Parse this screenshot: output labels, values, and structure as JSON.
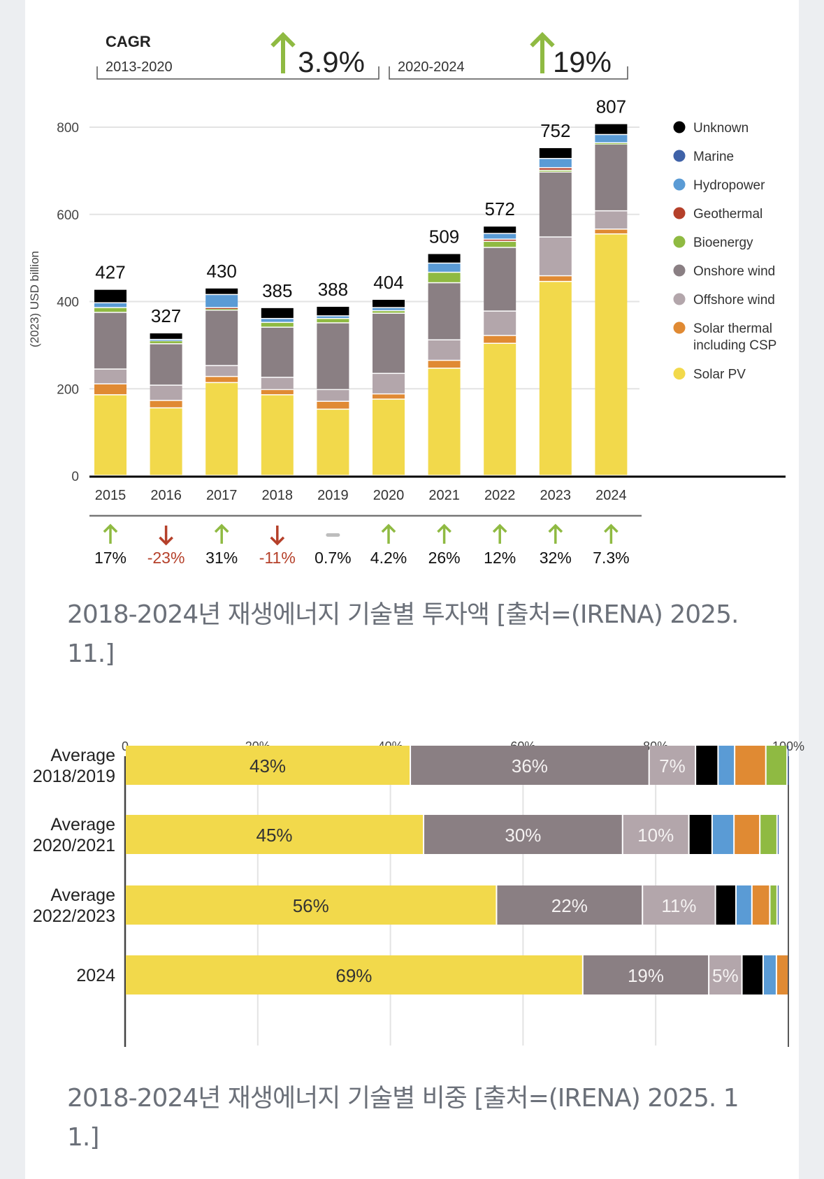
{
  "captions": {
    "chart1": "2018-2024년 재생에너지 기술별 투자액 [출처=(IRENA) 2025. 11.]",
    "chart2": "2018-2024년 재생에너지 기술별 비중 [출처=(IRENA) 2025. 1 1.]"
  },
  "colors": {
    "Unknown": "#000000",
    "Marine": "#3f62a8",
    "Hydropower": "#5a9bd5",
    "Geothermal": "#b5402a",
    "Bioenergy": "#8fba42",
    "Onshore wind": "#8a7f83",
    "Offshore wind": "#b3a6ab",
    "Solar thermal including CSP": "#e08a33",
    "Solar PV": "#f2d94b",
    "up": "#8fba42",
    "down": "#b5402a",
    "flat": "#bdbdbd"
  },
  "chart_data": [
    {
      "type": "bar",
      "stacked": true,
      "title": "CAGR",
      "ylabel": "(2023) USD billion",
      "ylim": [
        0,
        800
      ],
      "yticks": [
        0,
        200,
        400,
        600,
        800
      ],
      "grid": true,
      "legend_position": "right",
      "categories": [
        "2015",
        "2016",
        "2017",
        "2018",
        "2019",
        "2020",
        "2021",
        "2022",
        "2023",
        "2024"
      ],
      "totals": [
        427,
        327,
        430,
        385,
        388,
        404,
        509,
        572,
        752,
        807
      ],
      "total_labels": [
        "427",
        "327",
        "430",
        "385",
        "388",
        "404",
        "509",
        "572",
        "752",
        "807"
      ],
      "cagr": [
        {
          "period": "2013-2020",
          "value": "3.9%",
          "direction": "up"
        },
        {
          "period": "2020-2024",
          "value": "19%",
          "direction": "up"
        }
      ],
      "growth": [
        {
          "label": "17%",
          "direction": "up"
        },
        {
          "label": "-23%",
          "direction": "down"
        },
        {
          "label": "31%",
          "direction": "up"
        },
        {
          "label": "-11%",
          "direction": "down"
        },
        {
          "label": "0.7%",
          "direction": "flat"
        },
        {
          "label": "4.2%",
          "direction": "up"
        },
        {
          "label": "26%",
          "direction": "up"
        },
        {
          "label": "12%",
          "direction": "up"
        },
        {
          "label": "32%",
          "direction": "up"
        },
        {
          "label": "7.3%",
          "direction": "up"
        }
      ],
      "legend": [
        "Unknown",
        "Marine",
        "Hydropower",
        "Geothermal",
        "Bioenergy",
        "Onshore wind",
        "Offshore wind",
        "Solar thermal\nincluding CSP",
        "Solar PV"
      ],
      "series": [
        {
          "name": "Solar PV",
          "values": [
            185,
            155,
            213,
            185,
            152,
            175,
            246,
            303,
            445,
            554
          ]
        },
        {
          "name": "Solar thermal including CSP",
          "values": [
            25,
            17,
            14,
            12,
            18,
            12,
            18,
            18,
            13,
            11
          ]
        },
        {
          "name": "Offshore wind",
          "values": [
            34,
            35,
            25,
            28,
            27,
            47,
            47,
            56,
            89,
            42
          ]
        },
        {
          "name": "Onshore wind",
          "values": [
            130,
            95,
            127,
            115,
            153,
            138,
            131,
            146,
            149,
            153
          ]
        },
        {
          "name": "Bioenergy",
          "values": [
            11,
            7,
            4,
            11,
            10,
            6,
            24,
            14,
            4,
            3
          ]
        },
        {
          "name": "Geothermal",
          "values": [
            0,
            0,
            2,
            0,
            0,
            0,
            0,
            5,
            6,
            0
          ]
        },
        {
          "name": "Hydropower",
          "values": [
            11,
            3,
            30,
            9,
            6,
            7,
            21,
            13,
            21,
            19
          ]
        },
        {
          "name": "Marine",
          "values": [
            0,
            0,
            0,
            0,
            0,
            0,
            0,
            0,
            0,
            0
          ]
        },
        {
          "name": "Unknown",
          "values": [
            31,
            15,
            15,
            25,
            22,
            19,
            22,
            17,
            25,
            25
          ]
        }
      ]
    },
    {
      "type": "bar",
      "orientation": "horizontal",
      "stacked": true,
      "xlim": [
        0,
        100
      ],
      "xticks": [
        "0",
        "20%",
        "40%",
        "60%",
        "80%",
        "100%"
      ],
      "grid": true,
      "categories": [
        "Average\n2018/2019",
        "Average\n2020/2021",
        "Average\n2022/2023",
        "2024"
      ],
      "series": [
        {
          "name": "Solar PV",
          "values": [
            43,
            45,
            56,
            69
          ],
          "labels": [
            "43%",
            "45%",
            "56%",
            "69%"
          ]
        },
        {
          "name": "Onshore wind",
          "values": [
            36,
            30,
            22,
            19
          ],
          "labels": [
            "36%",
            "30%",
            "22%",
            "19%"
          ]
        },
        {
          "name": "Offshore wind",
          "values": [
            7,
            10,
            11,
            5
          ],
          "labels": [
            "7%",
            "10%",
            "11%",
            "5%"
          ]
        },
        {
          "name": "Unknown",
          "values": [
            3.4,
            3.5,
            3.1,
            3.2
          ]
        },
        {
          "name": "Hydropower",
          "values": [
            2.5,
            3.3,
            2.4,
            2.0
          ]
        },
        {
          "name": "Solar thermal including CSP",
          "values": [
            4.7,
            3.9,
            2.7,
            1.8
          ]
        },
        {
          "name": "Bioenergy",
          "values": [
            3.2,
            2.6,
            1.1,
            0
          ]
        },
        {
          "name": "Marine",
          "values": [
            0.2,
            0.3,
            0.3,
            0
          ]
        }
      ]
    }
  ]
}
